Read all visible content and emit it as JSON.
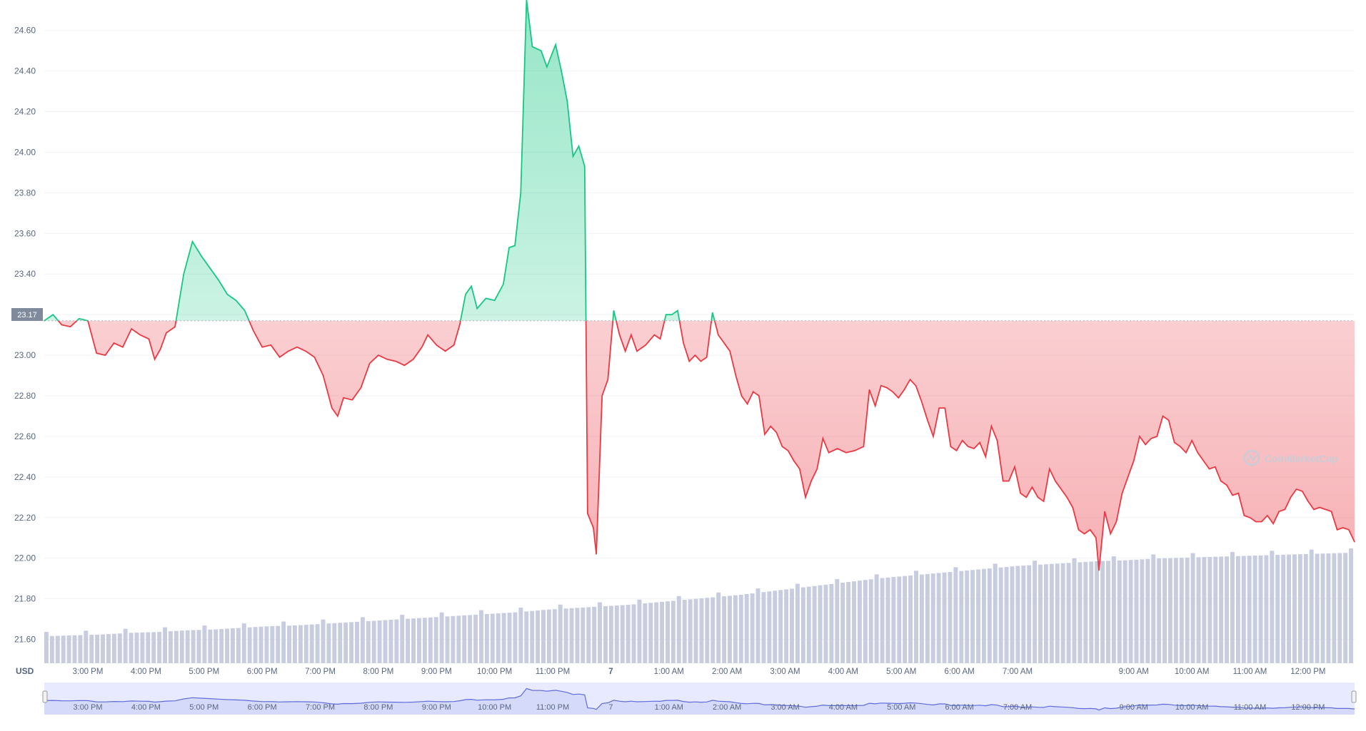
{
  "colors": {
    "up": "#16c784",
    "down": "#ea3943",
    "volume": "#c8cce0",
    "grid": "#eff2f5",
    "axis_text": "#58667e",
    "navigator_fill": "#e8eaff",
    "navigator_line": "#5f6bdb",
    "watermark": "#c9ccd6"
  },
  "watermark": "CoinMarketCap",
  "currency_label": "USD",
  "current_price_label": "23.17",
  "chart_data": {
    "type": "line",
    "ylim": [
      21.5,
      24.75
    ],
    "baseline": 23.17,
    "yticks": [
      "21.60",
      "21.80",
      "22.00",
      "22.20",
      "22.40",
      "22.60",
      "22.80",
      "23.00",
      "23.20",
      "23.40",
      "23.60",
      "23.80",
      "24.00",
      "24.20",
      "24.40",
      "24.60"
    ],
    "xticks": [
      {
        "label": "3:00 PM",
        "x": 0.75
      },
      {
        "label": "4:00 PM",
        "x": 1.75
      },
      {
        "label": "5:00 PM",
        "x": 2.75
      },
      {
        "label": "6:00 PM",
        "x": 3.75
      },
      {
        "label": "7:00 PM",
        "x": 4.75
      },
      {
        "label": "8:00 PM",
        "x": 5.75
      },
      {
        "label": "9:00 PM",
        "x": 6.75
      },
      {
        "label": "10:00 PM",
        "x": 7.75
      },
      {
        "label": "11:00 PM",
        "x": 8.75
      },
      {
        "label": "7",
        "x": 9.75
      },
      {
        "label": "1:00 AM",
        "x": 10.75
      },
      {
        "label": "2:00 AM",
        "x": 11.75
      },
      {
        "label": "3:00 AM",
        "x": 12.75
      },
      {
        "label": "4:00 AM",
        "x": 13.75
      },
      {
        "label": "5:00 AM",
        "x": 14.75
      },
      {
        "label": "6:00 AM",
        "x": 15.75
      },
      {
        "label": "7:00 AM",
        "x": 16.75
      },
      {
        "label": "9:00 AM",
        "x": 18.75
      },
      {
        "label": "10:00 AM",
        "x": 19.75
      },
      {
        "label": "11:00 AM",
        "x": 20.75
      },
      {
        "label": "12:00 PM",
        "x": 21.75
      }
    ],
    "navigator_xticks": [
      "3:00 PM",
      "4:00 PM",
      "5:00 PM",
      "6:00 PM",
      "7:00 PM",
      "8:00 PM",
      "9:00 PM",
      "10:00 PM",
      "11:00 PM",
      "7",
      "1:00 AM",
      "2:00 AM",
      "3:00 AM",
      "4:00 AM",
      "5:00 AM",
      "6:00 AM",
      "7:00 AM",
      "9:00 AM",
      "10:00 AM",
      "11:00 AM",
      "12:00 PM"
    ],
    "series": [
      {
        "values": [
          [
            0.0,
            23.17
          ],
          [
            0.15,
            23.2
          ],
          [
            0.3,
            23.15
          ],
          [
            0.45,
            23.14
          ],
          [
            0.6,
            23.18
          ],
          [
            0.75,
            23.17
          ],
          [
            0.9,
            23.01
          ],
          [
            1.05,
            23.0
          ],
          [
            1.2,
            23.06
          ],
          [
            1.35,
            23.04
          ],
          [
            1.5,
            23.13
          ],
          [
            1.65,
            23.1
          ],
          [
            1.8,
            23.08
          ],
          [
            1.9,
            22.98
          ],
          [
            2.0,
            23.03
          ],
          [
            2.1,
            23.11
          ],
          [
            2.25,
            23.14
          ],
          [
            2.4,
            23.4
          ],
          [
            2.55,
            23.56
          ],
          [
            2.7,
            23.49
          ],
          [
            2.85,
            23.43
          ],
          [
            3.0,
            23.37
          ],
          [
            3.15,
            23.3
          ],
          [
            3.3,
            23.27
          ],
          [
            3.45,
            23.22
          ],
          [
            3.6,
            23.12
          ],
          [
            3.75,
            23.04
          ],
          [
            3.9,
            23.05
          ],
          [
            4.05,
            22.99
          ],
          [
            4.2,
            23.02
          ],
          [
            4.35,
            23.04
          ],
          [
            4.5,
            23.02
          ],
          [
            4.65,
            22.99
          ],
          [
            4.8,
            22.9
          ],
          [
            4.95,
            22.74
          ],
          [
            5.05,
            22.7
          ],
          [
            5.15,
            22.79
          ],
          [
            5.3,
            22.78
          ],
          [
            5.45,
            22.84
          ],
          [
            5.6,
            22.96
          ],
          [
            5.75,
            23.0
          ],
          [
            5.9,
            22.98
          ],
          [
            6.05,
            22.97
          ],
          [
            6.2,
            22.95
          ],
          [
            6.35,
            22.98
          ],
          [
            6.5,
            23.04
          ],
          [
            6.6,
            23.1
          ],
          [
            6.75,
            23.05
          ],
          [
            6.9,
            23.02
          ],
          [
            7.05,
            23.05
          ],
          [
            7.15,
            23.15
          ],
          [
            7.25,
            23.3
          ],
          [
            7.35,
            23.34
          ],
          [
            7.45,
            23.23
          ],
          [
            7.6,
            23.28
          ],
          [
            7.75,
            23.27
          ],
          [
            7.9,
            23.35
          ],
          [
            8.0,
            23.53
          ],
          [
            8.1,
            23.54
          ],
          [
            8.2,
            23.8
          ],
          [
            8.3,
            24.75
          ],
          [
            8.4,
            24.52
          ],
          [
            8.55,
            24.5
          ],
          [
            8.65,
            24.42
          ],
          [
            8.8,
            24.53
          ],
          [
            8.9,
            24.4
          ],
          [
            9.0,
            24.25
          ],
          [
            9.1,
            23.98
          ],
          [
            9.2,
            24.03
          ],
          [
            9.3,
            23.93
          ],
          [
            9.35,
            22.22
          ],
          [
            9.45,
            22.15
          ],
          [
            9.5,
            22.02
          ],
          [
            9.6,
            22.8
          ],
          [
            9.7,
            22.88
          ],
          [
            9.8,
            23.22
          ],
          [
            9.9,
            23.1
          ],
          [
            10.0,
            23.02
          ],
          [
            10.1,
            23.1
          ],
          [
            10.2,
            23.02
          ],
          [
            10.35,
            23.05
          ],
          [
            10.5,
            23.1
          ],
          [
            10.6,
            23.08
          ],
          [
            10.7,
            23.2
          ],
          [
            10.8,
            23.2
          ],
          [
            10.9,
            23.22
          ],
          [
            11.0,
            23.06
          ],
          [
            11.1,
            22.97
          ],
          [
            11.2,
            23.0
          ],
          [
            11.3,
            22.97
          ],
          [
            11.4,
            22.99
          ],
          [
            11.5,
            23.21
          ],
          [
            11.6,
            23.1
          ],
          [
            11.7,
            23.06
          ],
          [
            11.8,
            23.02
          ],
          [
            11.9,
            22.9
          ],
          [
            12.0,
            22.8
          ],
          [
            12.1,
            22.76
          ],
          [
            12.2,
            22.82
          ],
          [
            12.3,
            22.8
          ],
          [
            12.4,
            22.61
          ],
          [
            12.5,
            22.65
          ],
          [
            12.6,
            22.62
          ],
          [
            12.7,
            22.55
          ],
          [
            12.8,
            22.53
          ],
          [
            12.9,
            22.48
          ],
          [
            13.0,
            22.44
          ],
          [
            13.1,
            22.3
          ],
          [
            13.2,
            22.38
          ],
          [
            13.3,
            22.44
          ],
          [
            13.4,
            22.59
          ],
          [
            13.5,
            22.52
          ],
          [
            13.65,
            22.54
          ],
          [
            13.8,
            22.52
          ],
          [
            13.95,
            22.53
          ],
          [
            14.1,
            22.55
          ],
          [
            14.2,
            22.83
          ],
          [
            14.3,
            22.75
          ],
          [
            14.4,
            22.85
          ],
          [
            14.5,
            22.84
          ],
          [
            14.6,
            22.82
          ],
          [
            14.7,
            22.79
          ],
          [
            14.8,
            22.83
          ],
          [
            14.9,
            22.88
          ],
          [
            15.0,
            22.85
          ],
          [
            15.1,
            22.77
          ],
          [
            15.2,
            22.68
          ],
          [
            15.3,
            22.6
          ],
          [
            15.4,
            22.74
          ],
          [
            15.5,
            22.74
          ],
          [
            15.6,
            22.55
          ],
          [
            15.7,
            22.53
          ],
          [
            15.8,
            22.58
          ],
          [
            15.9,
            22.55
          ],
          [
            16.0,
            22.54
          ],
          [
            16.1,
            22.57
          ],
          [
            16.2,
            22.5
          ],
          [
            16.3,
            22.65
          ],
          [
            16.4,
            22.58
          ],
          [
            16.5,
            22.38
          ],
          [
            16.6,
            22.38
          ],
          [
            16.7,
            22.45
          ],
          [
            16.8,
            22.32
          ],
          [
            16.9,
            22.3
          ],
          [
            17.0,
            22.35
          ],
          [
            17.1,
            22.3
          ],
          [
            17.2,
            22.28
          ],
          [
            17.3,
            22.44
          ],
          [
            17.4,
            22.38
          ],
          [
            17.5,
            22.34
          ],
          [
            17.6,
            22.3
          ],
          [
            17.7,
            22.25
          ],
          [
            17.8,
            22.14
          ],
          [
            17.9,
            22.12
          ],
          [
            18.0,
            22.14
          ],
          [
            18.1,
            22.1
          ],
          [
            18.15,
            21.94
          ],
          [
            18.25,
            22.23
          ],
          [
            18.35,
            22.12
          ],
          [
            18.45,
            22.18
          ],
          [
            18.55,
            22.32
          ],
          [
            18.65,
            22.4
          ],
          [
            18.75,
            22.48
          ],
          [
            18.85,
            22.6
          ],
          [
            18.95,
            22.56
          ],
          [
            19.05,
            22.59
          ],
          [
            19.15,
            22.6
          ],
          [
            19.25,
            22.7
          ],
          [
            19.35,
            22.68
          ],
          [
            19.45,
            22.57
          ],
          [
            19.55,
            22.55
          ],
          [
            19.65,
            22.52
          ],
          [
            19.75,
            22.58
          ],
          [
            19.85,
            22.52
          ],
          [
            19.95,
            22.48
          ],
          [
            20.05,
            22.44
          ],
          [
            20.15,
            22.45
          ],
          [
            20.25,
            22.38
          ],
          [
            20.35,
            22.36
          ],
          [
            20.45,
            22.31
          ],
          [
            20.55,
            22.32
          ],
          [
            20.65,
            22.21
          ],
          [
            20.75,
            22.2
          ],
          [
            20.85,
            22.18
          ],
          [
            20.95,
            22.18
          ],
          [
            21.05,
            22.21
          ],
          [
            21.15,
            22.17
          ],
          [
            21.25,
            22.23
          ],
          [
            21.35,
            22.24
          ],
          [
            21.45,
            22.3
          ],
          [
            21.55,
            22.34
          ],
          [
            21.65,
            22.33
          ],
          [
            21.75,
            22.28
          ],
          [
            21.85,
            22.24
          ],
          [
            21.95,
            22.25
          ],
          [
            22.05,
            22.24
          ],
          [
            22.15,
            22.23
          ],
          [
            22.25,
            22.14
          ],
          [
            22.35,
            22.15
          ],
          [
            22.45,
            22.14
          ],
          [
            22.55,
            22.08
          ]
        ]
      }
    ],
    "volume": {
      "xlim": [
        0,
        22.55
      ],
      "values": [
        0.0,
        1.0,
        2.0,
        4.0,
        5.0,
        7.0,
        8.0,
        10.0,
        12.0,
        13.0,
        15.0,
        17.0,
        19.0,
        21.0,
        23.0,
        25.0,
        27.0,
        29.0,
        32.0,
        34.0,
        36.0,
        38.0,
        41.0,
        44.0,
        47.0,
        50.0,
        54.0,
        58.0,
        62.0,
        66.0,
        70.0,
        73.0,
        76.0,
        79.0,
        82.0,
        85.0,
        87.0,
        89.0,
        91.0,
        92.0,
        94.0,
        95.0,
        96.0,
        97.0,
        98.0,
        99.0,
        100.0,
        101.0
      ]
    }
  }
}
